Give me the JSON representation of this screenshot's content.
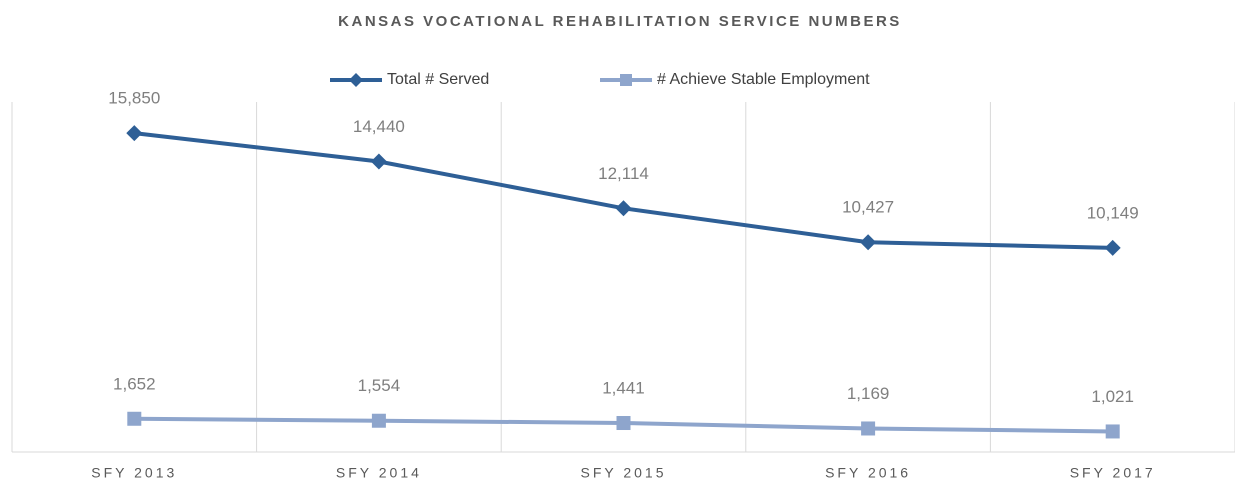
{
  "chart_data": {
    "type": "line",
    "title": "KANSAS VOCATIONAL REHABILITATION SERVICE NUMBERS",
    "categories": [
      "SFY 2013",
      "SFY 2014",
      "SFY 2015",
      "SFY 2016",
      "SFY 2017"
    ],
    "series": [
      {
        "name": "Total # Served",
        "color": "#2e5f96",
        "marker": "diamond",
        "values": [
          15850,
          14440,
          12114,
          10427,
          10149
        ],
        "value_labels": [
          "15,850",
          "14,440",
          "12,114",
          "10,427",
          "10,149"
        ]
      },
      {
        "name": "# Achieve Stable Employment",
        "color": "#8ea5cc",
        "marker": "square",
        "values": [
          1652,
          1554,
          1441,
          1169,
          1021
        ],
        "value_labels": [
          "1,652",
          "1,554",
          "1,441",
          "1,169",
          "1,021"
        ]
      }
    ],
    "ylim": [
      0,
      17000
    ],
    "grid": true,
    "legend": "top"
  }
}
